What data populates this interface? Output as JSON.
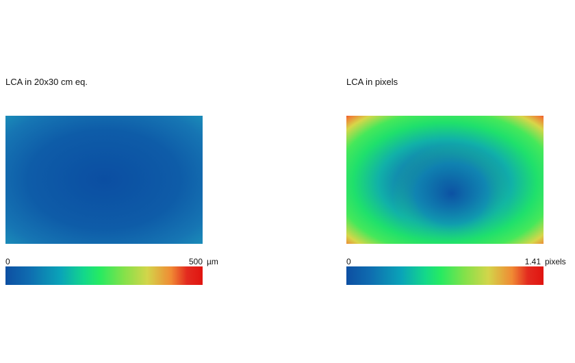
{
  "chart_data": [
    {
      "type": "heatmap",
      "title": "LCA in 20x30 cm eq.",
      "colorbar": {
        "min_label": "0",
        "max_label": "500",
        "unit": "µm",
        "min": 0,
        "max": 500
      },
      "field_description_values": {
        "center": 60,
        "edges": 120
      },
      "colors": {
        "low": "#0d4fa2",
        "mid": "#27ea61",
        "high": "#e01410"
      }
    },
    {
      "type": "heatmap",
      "title": "LCA in pixels",
      "colorbar": {
        "min_label": "0",
        "max_label": "1.41",
        "unit": "pixels",
        "min": 0,
        "max": 1.41
      },
      "field_description_values": {
        "center": 0.15,
        "ring": 0.7,
        "corners": 1.41
      },
      "colors": {
        "low": "#0d4fa2",
        "mid": "#27ea61",
        "high": "#e01410"
      }
    }
  ]
}
